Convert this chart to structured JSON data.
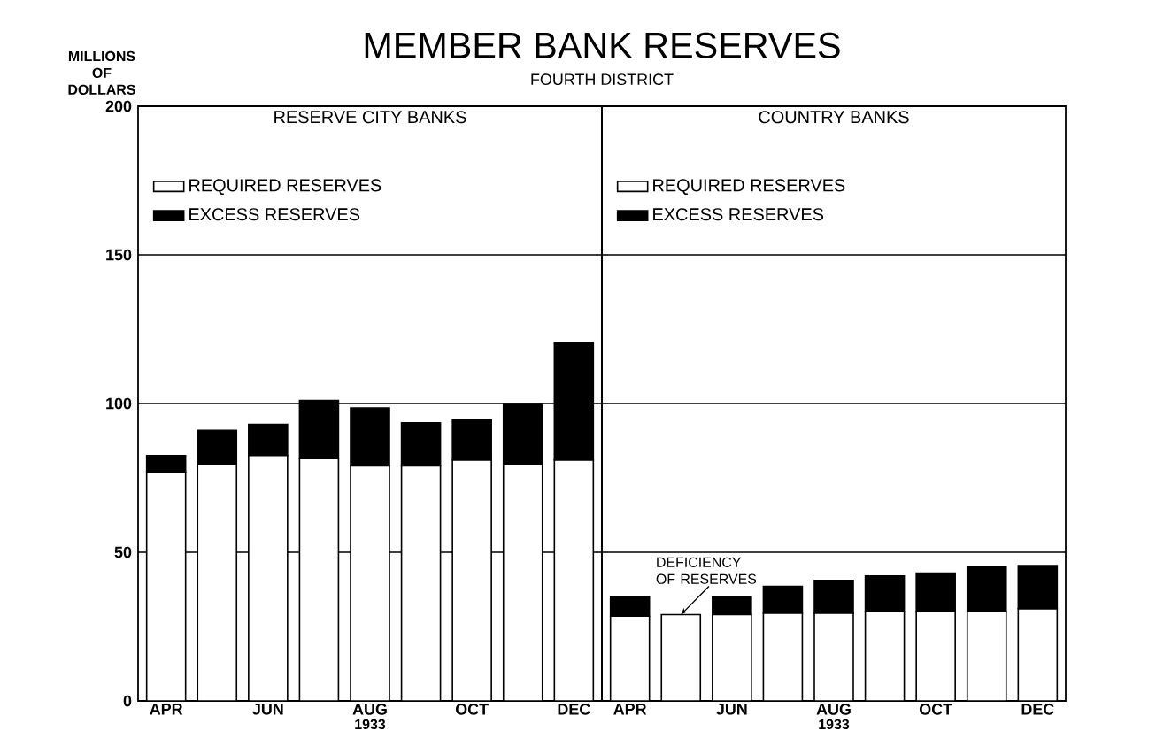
{
  "chart_data": [
    {
      "type": "bar",
      "stacked": true,
      "title": "RESERVE CITY BANKS",
      "ylabel": "MILLIONS OF DOLLARS",
      "xlabel": "1933",
      "annotations": [
        "MEMBER BANK RESERVES",
        "FOURTH DISTRICT"
      ],
      "categories": [
        "APR",
        null,
        "JUN",
        null,
        "AUG",
        null,
        "OCT",
        null,
        "DEC"
      ],
      "series": [
        {
          "name": "REQUIRED RESERVES",
          "color": "#ffffff",
          "values": [
            77,
            79.5,
            82.5,
            81.5,
            79,
            79,
            81,
            79.5,
            81
          ]
        },
        {
          "name": "EXCESS RESERVES",
          "color": "#000000",
          "values": [
            5.5,
            11.5,
            10.5,
            19.5,
            19.5,
            14.5,
            13.5,
            20.5,
            39.5
          ]
        }
      ],
      "ylim": [
        0,
        200
      ],
      "yticks": [
        0,
        50,
        100,
        150,
        200
      ],
      "grid": "y",
      "legend": "top left"
    },
    {
      "type": "bar",
      "stacked": true,
      "title": "COUNTRY BANKS",
      "xlabel": "1933",
      "annotations": [
        {
          "text": "DEFICIENCY OF RESERVES",
          "y": 29
        }
      ],
      "categories": [
        "APR",
        null,
        "JUN",
        null,
        "AUG",
        null,
        "OCT",
        null,
        "DEC"
      ],
      "series": [
        {
          "name": "REQUIRED RESERVES",
          "color": "#ffffff",
          "values": [
            28.5,
            29,
            29,
            29.5,
            29.5,
            30,
            30,
            30,
            31
          ]
        },
        {
          "name": "EXCESS RESERVES",
          "color": "#000000",
          "values": [
            6.5,
            0,
            6,
            9,
            11,
            12,
            13,
            15,
            14.5
          ]
        }
      ],
      "ylim": [
        0,
        200
      ],
      "yticks": [
        0,
        50,
        100,
        150,
        200
      ],
      "grid": "y",
      "legend": "top left",
      "tick_labels": "x"
    }
  ]
}
